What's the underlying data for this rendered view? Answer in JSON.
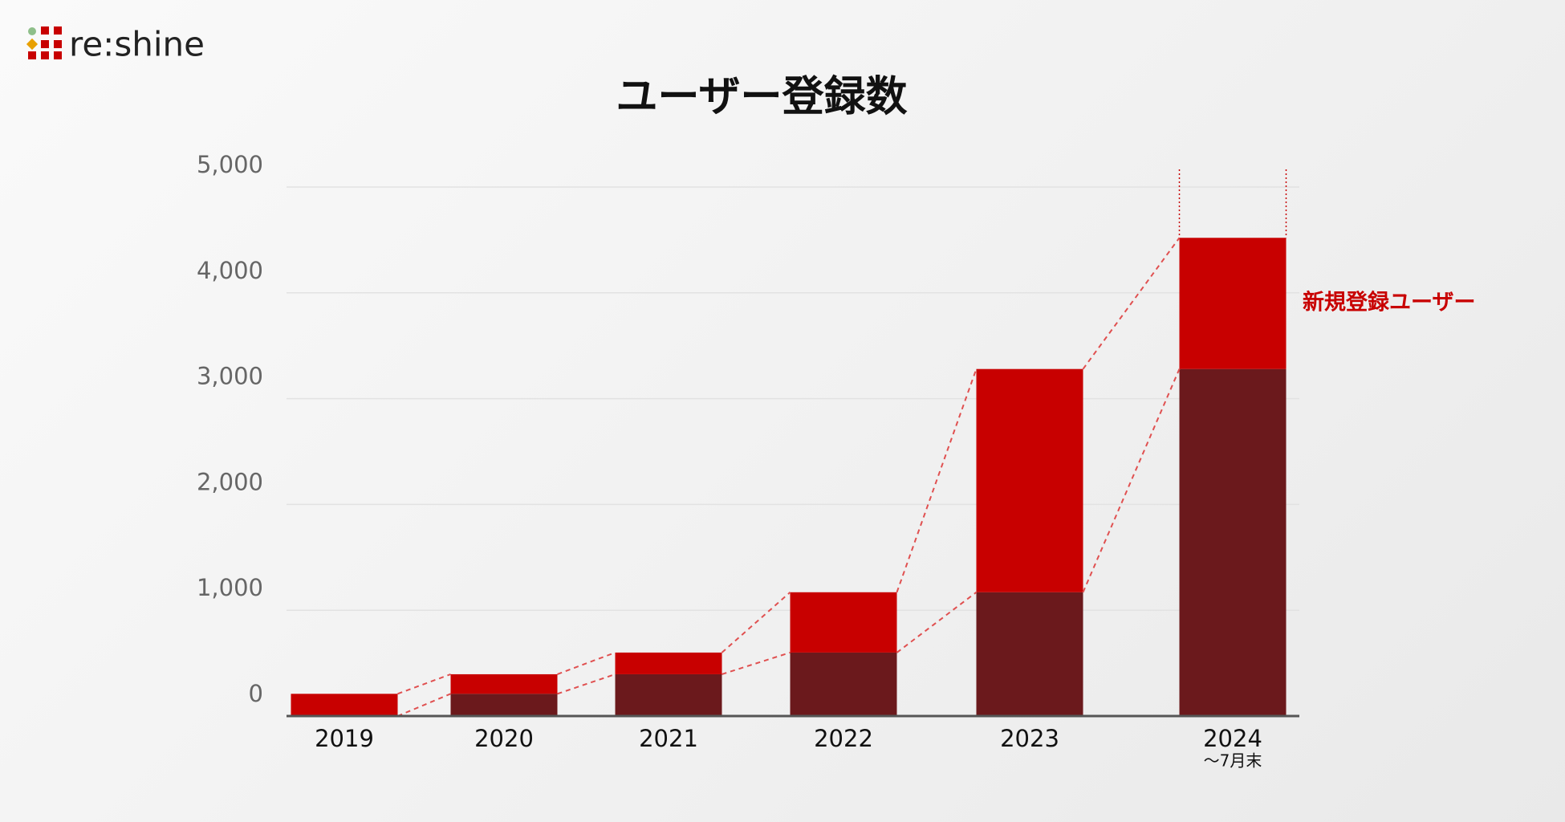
{
  "logo": "re:shine",
  "chart_data": {
    "type": "stacked_bar",
    "title": "ユーザー登録数",
    "categories": [
      "2019",
      "2020",
      "2021",
      "2022",
      "2023",
      "2024"
    ],
    "category_note": "〜7月末",
    "series": [
      {
        "color": "#6b191c",
        "values": [
          0,
          210,
          395,
          600,
          1170,
          3280
        ]
      },
      {
        "name": "新規登録ユーザー",
        "color": "#c80000",
        "values": [
          210,
          185,
          205,
          570,
          2110,
          1240
        ]
      }
    ],
    "ylim": [
      0,
      5000
    ],
    "yticks": [
      0,
      {
        "value": 1000,
        "label": "1,000"
      },
      {
        "value": 2000,
        "label": "2,000"
      },
      {
        "value": 3000,
        "label": "3,000"
      },
      {
        "value": 4000,
        "label": "4,000"
      },
      {
        "value": 5000,
        "label": "5,000"
      }
    ],
    "grid": true
  }
}
